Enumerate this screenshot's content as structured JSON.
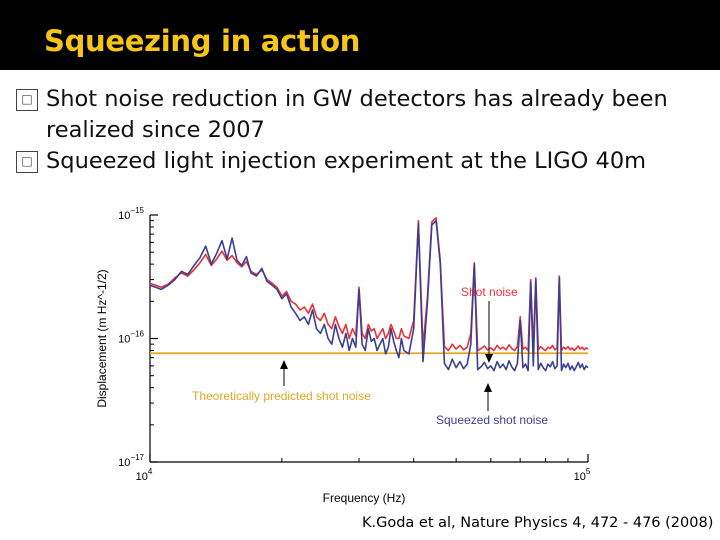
{
  "slide": {
    "title": "Squeezing in action",
    "bullet_glyph": "□",
    "bullets": [
      "Shot noise reduction in GW detectors has already been realized since 2007",
      "Squeezed light injection experiment at the LIGO 40m"
    ],
    "citation": "K.Goda et al, Nature Physics 4, 472 - 476 (2008)"
  },
  "colors": {
    "title": "#f5c518",
    "red_trace": "#e8333a",
    "blue_trace": "#3b3f8f",
    "shot_noise_line": "#e3a625",
    "label_red": "#e8333a",
    "label_orange": "#e3a625",
    "label_blue": "#3b3f8f"
  },
  "chart_data": {
    "type": "line",
    "xlabel": "Frequency (Hz)",
    "ylabel": "Displacement (m Hz^-1/2)",
    "xscale": "log",
    "yscale": "log",
    "xlim": [
      10000,
      100000
    ],
    "ylim": [
      1e-17,
      1e-15
    ],
    "x_ticks": [
      "10^4",
      "10^5"
    ],
    "y_ticks": [
      "10^-17",
      "10^-16",
      "10^-15"
    ],
    "annotations": {
      "shot_noise": "Shot noise",
      "theoretical": "Theoretically predicted shot noise",
      "squeezed": "Squeezed shot noise"
    },
    "theoretical_level": 7.6e-17,
    "series": [
      {
        "name": "Shot noise",
        "color": "#e8333a",
        "x": [
          10000,
          10300,
          10600,
          11000,
          11400,
          11800,
          12200,
          12600,
          13000,
          13400,
          13800,
          14200,
          14600,
          15000,
          15400,
          15800,
          16200,
          16600,
          17000,
          17500,
          18000,
          18500,
          19000,
          19500,
          20000,
          20500,
          21000,
          21500,
          22000,
          22500,
          23000,
          23500,
          24000,
          24500,
          25000,
          25500,
          26000,
          26500,
          27000,
          27500,
          28000,
          28500,
          29000,
          29500,
          30000,
          30500,
          31000,
          31500,
          32000,
          32500,
          33000,
          33500,
          34000,
          34500,
          35000,
          35500,
          36000,
          36500,
          37000,
          37500,
          38000,
          39000,
          40000,
          41000,
          42000,
          43000,
          44000,
          45000,
          46000,
          47000,
          48000,
          49000,
          50000,
          51000,
          52000,
          53000,
          54000,
          55000,
          56000,
          57000,
          58000,
          59000,
          60000,
          61000,
          62000,
          63000,
          64000,
          65000,
          66000,
          67000,
          68000,
          69000,
          70000,
          71000,
          72000,
          73000,
          74000,
          75000,
          76000,
          77000,
          78000,
          79000,
          80000,
          81000,
          82000,
          83000,
          84000,
          85000,
          86000,
          87000,
          88000,
          89000,
          90000,
          91000,
          92000,
          93000,
          94000,
          95000,
          96000,
          97000,
          98000,
          99000,
          100000
        ],
        "values": [
          2.8e-16,
          2.7e-16,
          2.6e-16,
          2.75e-16,
          3.1e-16,
          3.4e-16,
          3.2e-16,
          3.6e-16,
          4.1e-16,
          4.8e-16,
          3.9e-16,
          4.4e-16,
          5.1e-16,
          4.3e-16,
          4.7e-16,
          4.1e-16,
          3.8e-16,
          4.2e-16,
          3.5e-16,
          3.3e-16,
          3.6e-16,
          3e-16,
          2.8e-16,
          2.6e-16,
          2.2e-16,
          2.4e-16,
          2e-16,
          1.9e-16,
          1.7e-16,
          1.8e-16,
          1.6e-16,
          1.9e-16,
          1.5e-16,
          1.4e-16,
          1.6e-16,
          1.3e-16,
          1.2e-16,
          1.5e-16,
          1.25e-16,
          1.1e-16,
          1.3e-16,
          1e-16,
          1.2e-16,
          1.05e-16,
          2.6e-16,
          1.1e-16,
          1e-16,
          1.3e-16,
          1.15e-16,
          1.2e-16,
          1e-16,
          1.1e-16,
          1.2e-16,
          1e-16,
          1.1e-16,
          1.3e-16,
          1.15e-16,
          1e-16,
          1e-16,
          1.2e-16,
          1.05e-16,
          1e-16,
          1.4e-16,
          9e-16,
          8.5e-17,
          2.2e-16,
          8.8e-16,
          9.5e-16,
          4.2e-16,
          8.6e-17,
          8e-17,
          9e-17,
          8.2e-17,
          8.8e-17,
          8.1e-17,
          8.5e-17,
          1.1e-16,
          4.1e-16,
          8e-17,
          8.3e-17,
          8.7e-17,
          8.1e-17,
          8.4e-17,
          8e-17,
          8.8e-17,
          8.2e-17,
          8.5e-17,
          8.1e-17,
          8.9e-17,
          8.3e-17,
          8e-17,
          8.6e-17,
          1.5e-16,
          8.2e-17,
          8.5e-17,
          8e-17,
          3e-16,
          8.4e-17,
          3.1e-16,
          8.1e-17,
          8.6e-17,
          8.2e-17,
          8e-17,
          8.5e-17,
          8.3e-17,
          8.8e-17,
          8.1e-17,
          8.4e-17,
          3.2e-16,
          8e-17,
          8.5e-17,
          8.2e-17,
          8.6e-17,
          8.1e-17,
          8.4e-17,
          8e-17,
          8.3e-17,
          8.7e-17,
          8.2e-17,
          8.5e-17,
          8.1e-17,
          8.4e-17,
          8.2e-17
        ]
      },
      {
        "name": "Squeezed shot noise",
        "color": "#3b3f8f",
        "x": [
          10000,
          10300,
          10600,
          11000,
          11400,
          11800,
          12200,
          12600,
          13000,
          13400,
          13800,
          14200,
          14600,
          15000,
          15400,
          15800,
          16200,
          16600,
          17000,
          17500,
          18000,
          18500,
          19000,
          19500,
          20000,
          20500,
          21000,
          21500,
          22000,
          22500,
          23000,
          23500,
          24000,
          24500,
          25000,
          25500,
          26000,
          26500,
          27000,
          27500,
          28000,
          28500,
          29000,
          29500,
          30000,
          30500,
          31000,
          31500,
          32000,
          32500,
          33000,
          33500,
          34000,
          34500,
          35000,
          35500,
          36000,
          36500,
          37000,
          37500,
          38000,
          39000,
          40000,
          41000,
          42000,
          43000,
          44000,
          45000,
          46000,
          47000,
          48000,
          49000,
          50000,
          51000,
          52000,
          53000,
          54000,
          55000,
          56000,
          57000,
          58000,
          59000,
          60000,
          61000,
          62000,
          63000,
          64000,
          65000,
          66000,
          67000,
          68000,
          69000,
          70000,
          71000,
          72000,
          73000,
          74000,
          75000,
          76000,
          77000,
          78000,
          79000,
          80000,
          81000,
          82000,
          83000,
          84000,
          85000,
          86000,
          87000,
          88000,
          89000,
          90000,
          91000,
          92000,
          93000,
          94000,
          95000,
          96000,
          97000,
          98000,
          99000,
          100000
        ],
        "values": [
          2.7e-16,
          2.6e-16,
          2.5e-16,
          2.7e-16,
          3e-16,
          3.5e-16,
          3.3e-16,
          3.9e-16,
          4.5e-16,
          5.6e-16,
          4e-16,
          4.9e-16,
          6.2e-16,
          4.4e-16,
          6.5e-16,
          4.3e-16,
          3.9e-16,
          4.6e-16,
          3.4e-16,
          3.2e-16,
          3.7e-16,
          2.9e-16,
          2.7e-16,
          2.5e-16,
          2.1e-16,
          2.3e-16,
          1.8e-16,
          1.6e-16,
          1.4e-16,
          1.5e-16,
          1.3e-16,
          1.7e-16,
          1.2e-16,
          1.1e-16,
          1.3e-16,
          1e-16,
          9e-17,
          1.3e-16,
          1e-16,
          8.5e-17,
          1.1e-16,
          8e-17,
          1e-16,
          8.5e-17,
          2.5e-16,
          9e-17,
          8e-17,
          1.2e-16,
          9.5e-17,
          1e-16,
          8e-17,
          9e-17,
          1e-16,
          7.5e-17,
          8.5e-17,
          1.2e-16,
          9.5e-17,
          8e-17,
          7e-17,
          1e-16,
          8e-17,
          7.5e-17,
          1.2e-16,
          8.5e-16,
          6.5e-17,
          2e-16,
          8.3e-16,
          9e-16,
          4e-16,
          6.3e-17,
          5.6e-17,
          6.8e-17,
          5.8e-17,
          6.5e-17,
          5.7e-17,
          6.2e-17,
          9e-17,
          4e-16,
          5.6e-17,
          5.9e-17,
          6.4e-17,
          5.7e-17,
          6e-17,
          5.5e-17,
          6.5e-17,
          5.8e-17,
          6.2e-17,
          5.6e-17,
          6.6e-17,
          5.9e-17,
          5.5e-17,
          6.3e-17,
          1.4e-16,
          5.8e-17,
          6.2e-17,
          5.5e-17,
          2.9e-16,
          6e-17,
          3e-16,
          5.6e-17,
          6.3e-17,
          5.8e-17,
          5.5e-17,
          6.2e-17,
          5.9e-17,
          6.5e-17,
          5.7e-17,
          6e-17,
          3.1e-16,
          5.5e-17,
          6.2e-17,
          5.8e-17,
          6.3e-17,
          5.6e-17,
          6e-17,
          5.5e-17,
          5.9e-17,
          6.4e-17,
          5.8e-17,
          6.2e-17,
          5.6e-17,
          6e-17,
          5.8e-17
        ]
      }
    ]
  }
}
